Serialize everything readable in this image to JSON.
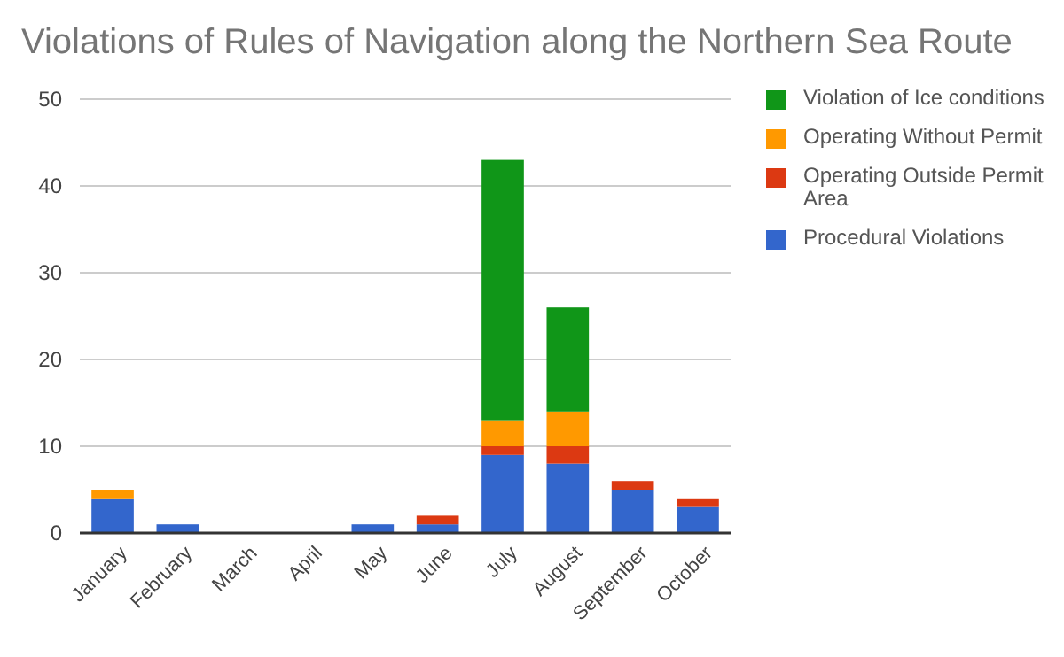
{
  "chart_data": {
    "type": "bar",
    "title": "Violations of Rules of Navigation along the Northern Sea Route",
    "stacked": true,
    "categories": [
      "January",
      "February",
      "March",
      "April",
      "May",
      "June",
      "July",
      "August",
      "September",
      "October"
    ],
    "series": [
      {
        "name": "Procedural Violations",
        "color": "#3366cc",
        "values": [
          4,
          1,
          0,
          0,
          1,
          1,
          9,
          8,
          5,
          3
        ]
      },
      {
        "name": "Operating Outside Permit Area",
        "color": "#dc3912",
        "values": [
          0,
          0,
          0,
          0,
          0,
          1,
          1,
          2,
          1,
          1
        ]
      },
      {
        "name": "Operating Without Permit",
        "color": "#ff9900",
        "values": [
          1,
          0,
          0,
          0,
          0,
          0,
          3,
          4,
          0,
          0
        ]
      },
      {
        "name": "Violation of Ice conditions",
        "color": "#109618",
        "values": [
          0,
          0,
          0,
          0,
          0,
          0,
          30,
          12,
          0,
          0
        ]
      }
    ],
    "ylim": [
      0,
      50
    ],
    "yticks": [
      0,
      10,
      20,
      30,
      40,
      50
    ],
    "grid": "y",
    "legend": "right"
  }
}
